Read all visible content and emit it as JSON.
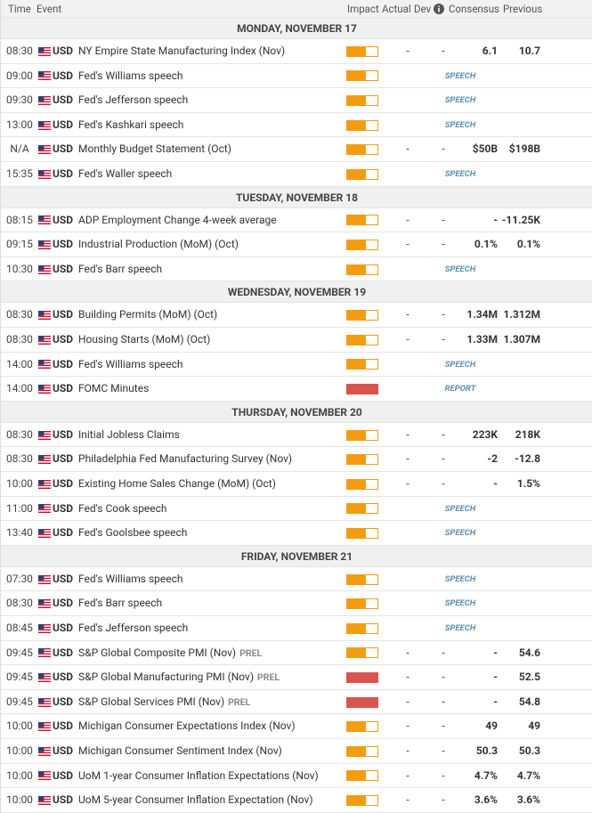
{
  "header": {
    "time": "Time",
    "event": "Event",
    "impact": "Impact",
    "actual": "Actual",
    "dev": "Dev",
    "consensus": "Consensus",
    "previous": "Previous"
  },
  "days": [
    {
      "title": "MONDAY, NOVEMBER 17",
      "events": [
        {
          "time": "08:30",
          "currency": "USD",
          "event": "NY Empire State Manufacturing Index (Nov)",
          "impact": "medium",
          "actual": "-",
          "dev": "-",
          "consensus": "6.1",
          "previous": "10.7"
        },
        {
          "time": "09:00",
          "currency": "USD",
          "event": "Fed's Williams speech",
          "impact": "medium",
          "label": "SPEECH"
        },
        {
          "time": "09:30",
          "currency": "USD",
          "event": "Fed's Jefferson speech",
          "impact": "medium",
          "label": "SPEECH"
        },
        {
          "time": "13:00",
          "currency": "USD",
          "event": "Fed's Kashkari speech",
          "impact": "medium",
          "label": "SPEECH"
        },
        {
          "time": "N/A",
          "currency": "USD",
          "event": "Monthly Budget Statement (Oct)",
          "impact": "medium",
          "actual": "-",
          "dev": "-",
          "consensus": "$50B",
          "previous": "$198B"
        },
        {
          "time": "15:35",
          "currency": "USD",
          "event": "Fed's Waller speech",
          "impact": "medium",
          "label": "SPEECH"
        }
      ]
    },
    {
      "title": "TUESDAY, NOVEMBER 18",
      "events": [
        {
          "time": "08:15",
          "currency": "USD",
          "event": "ADP Employment Change 4-week average",
          "impact": "medium",
          "actual": "-",
          "dev": "-",
          "consensus": "-",
          "previous": "-11.25K"
        },
        {
          "time": "09:15",
          "currency": "USD",
          "event": "Industrial Production (MoM) (Oct)",
          "impact": "medium",
          "actual": "-",
          "dev": "-",
          "consensus": "0.1%",
          "previous": "0.1%"
        },
        {
          "time": "10:30",
          "currency": "USD",
          "event": "Fed's Barr speech",
          "impact": "medium",
          "label": "SPEECH"
        }
      ]
    },
    {
      "title": "WEDNESDAY, NOVEMBER 19",
      "events": [
        {
          "time": "08:30",
          "currency": "USD",
          "event": "Building Permits (MoM) (Oct)",
          "impact": "medium",
          "actual": "-",
          "dev": "-",
          "consensus": "1.34M",
          "previous": "1.312M"
        },
        {
          "time": "08:30",
          "currency": "USD",
          "event": "Housing Starts (MoM) (Oct)",
          "impact": "medium",
          "actual": "-",
          "dev": "-",
          "consensus": "1.33M",
          "previous": "1.307M"
        },
        {
          "time": "14:00",
          "currency": "USD",
          "event": "Fed's Williams speech",
          "impact": "medium",
          "label": "SPEECH"
        },
        {
          "time": "14:00",
          "currency": "USD",
          "event": "FOMC Minutes",
          "impact": "high",
          "label": "REPORT"
        }
      ]
    },
    {
      "title": "THURSDAY, NOVEMBER 20",
      "events": [
        {
          "time": "08:30",
          "currency": "USD",
          "event": "Initial Jobless Claims",
          "impact": "medium",
          "actual": "-",
          "dev": "-",
          "consensus": "223K",
          "previous": "218K"
        },
        {
          "time": "08:30",
          "currency": "USD",
          "event": "Philadelphia Fed Manufacturing Survey (Nov)",
          "impact": "medium",
          "actual": "-",
          "dev": "-",
          "consensus": "-2",
          "previous": "-12.8"
        },
        {
          "time": "10:00",
          "currency": "USD",
          "event": "Existing Home Sales Change (MoM) (Oct)",
          "impact": "medium",
          "actual": "-",
          "dev": "-",
          "consensus": "-",
          "previous": "1.5%"
        },
        {
          "time": "11:00",
          "currency": "USD",
          "event": "Fed's Cook speech",
          "impact": "medium",
          "label": "SPEECH"
        },
        {
          "time": "13:40",
          "currency": "USD",
          "event": "Fed's Goolsbee speech",
          "impact": "medium",
          "label": "SPEECH"
        }
      ]
    },
    {
      "title": "FRIDAY, NOVEMBER 21",
      "events": [
        {
          "time": "07:30",
          "currency": "USD",
          "event": "Fed's Williams speech",
          "impact": "medium",
          "label": "SPEECH"
        },
        {
          "time": "08:30",
          "currency": "USD",
          "event": "Fed's Barr speech",
          "impact": "medium",
          "label": "SPEECH"
        },
        {
          "time": "08:45",
          "currency": "USD",
          "event": "Fed's Jefferson speech",
          "impact": "medium",
          "label": "SPEECH"
        },
        {
          "time": "09:45",
          "currency": "USD",
          "event": "S&P Global Composite PMI (Nov)",
          "tag": "PREL",
          "impact": "medium",
          "actual": "-",
          "dev": "-",
          "consensus": "-",
          "previous": "54.6"
        },
        {
          "time": "09:45",
          "currency": "USD",
          "event": "S&P Global Manufacturing PMI (Nov)",
          "tag": "PREL",
          "impact": "high",
          "actual": "-",
          "dev": "-",
          "consensus": "-",
          "previous": "52.5"
        },
        {
          "time": "09:45",
          "currency": "USD",
          "event": "S&P Global Services PMI (Nov)",
          "tag": "PREL",
          "impact": "high",
          "actual": "-",
          "dev": "-",
          "consensus": "-",
          "previous": "54.8"
        },
        {
          "time": "10:00",
          "currency": "USD",
          "event": "Michigan Consumer Expectations Index (Nov)",
          "impact": "medium",
          "actual": "-",
          "dev": "-",
          "consensus": "49",
          "previous": "49"
        },
        {
          "time": "10:00",
          "currency": "USD",
          "event": "Michigan Consumer Sentiment Index (Nov)",
          "impact": "medium",
          "actual": "-",
          "dev": "-",
          "consensus": "50.3",
          "previous": "50.3"
        },
        {
          "time": "10:00",
          "currency": "USD",
          "event": "UoM 1-year Consumer Inflation Expectations (Nov)",
          "impact": "medium",
          "actual": "-",
          "dev": "-",
          "consensus": "4.7%",
          "previous": "4.7%"
        },
        {
          "time": "10:00",
          "currency": "USD",
          "event": "UoM 5-year Consumer Inflation Expectation (Nov)",
          "impact": "medium",
          "actual": "-",
          "dev": "-",
          "consensus": "3.6%",
          "previous": "3.6%"
        }
      ]
    }
  ]
}
